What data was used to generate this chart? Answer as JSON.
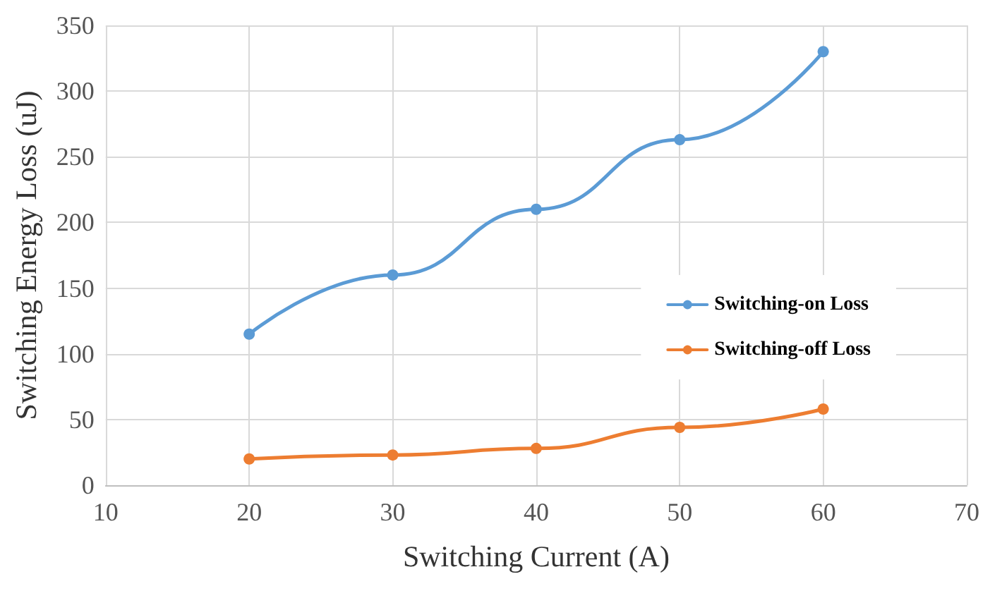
{
  "chart_data": {
    "type": "line",
    "xlabel": "Switching Current (A)",
    "ylabel": "Switching Energy Loss (uJ)",
    "x": [
      20,
      30,
      40,
      50,
      60
    ],
    "series": [
      {
        "name": "Switching-on Loss",
        "color": "#5b9bd5",
        "values": [
          115,
          160,
          210,
          263,
          330
        ]
      },
      {
        "name": "Switching-off Loss",
        "color": "#ed7d31",
        "values": [
          20,
          23,
          28,
          44,
          58
        ]
      }
    ],
    "xlim": [
      10,
      70
    ],
    "xticks": [
      10,
      20,
      30,
      40,
      50,
      60,
      70
    ],
    "ylim": [
      0,
      350
    ],
    "yticks": [
      0,
      50,
      100,
      150,
      200,
      250,
      300,
      350
    ],
    "grid": true,
    "legend": "right",
    "marker": "circle",
    "line_style": "solid"
  }
}
